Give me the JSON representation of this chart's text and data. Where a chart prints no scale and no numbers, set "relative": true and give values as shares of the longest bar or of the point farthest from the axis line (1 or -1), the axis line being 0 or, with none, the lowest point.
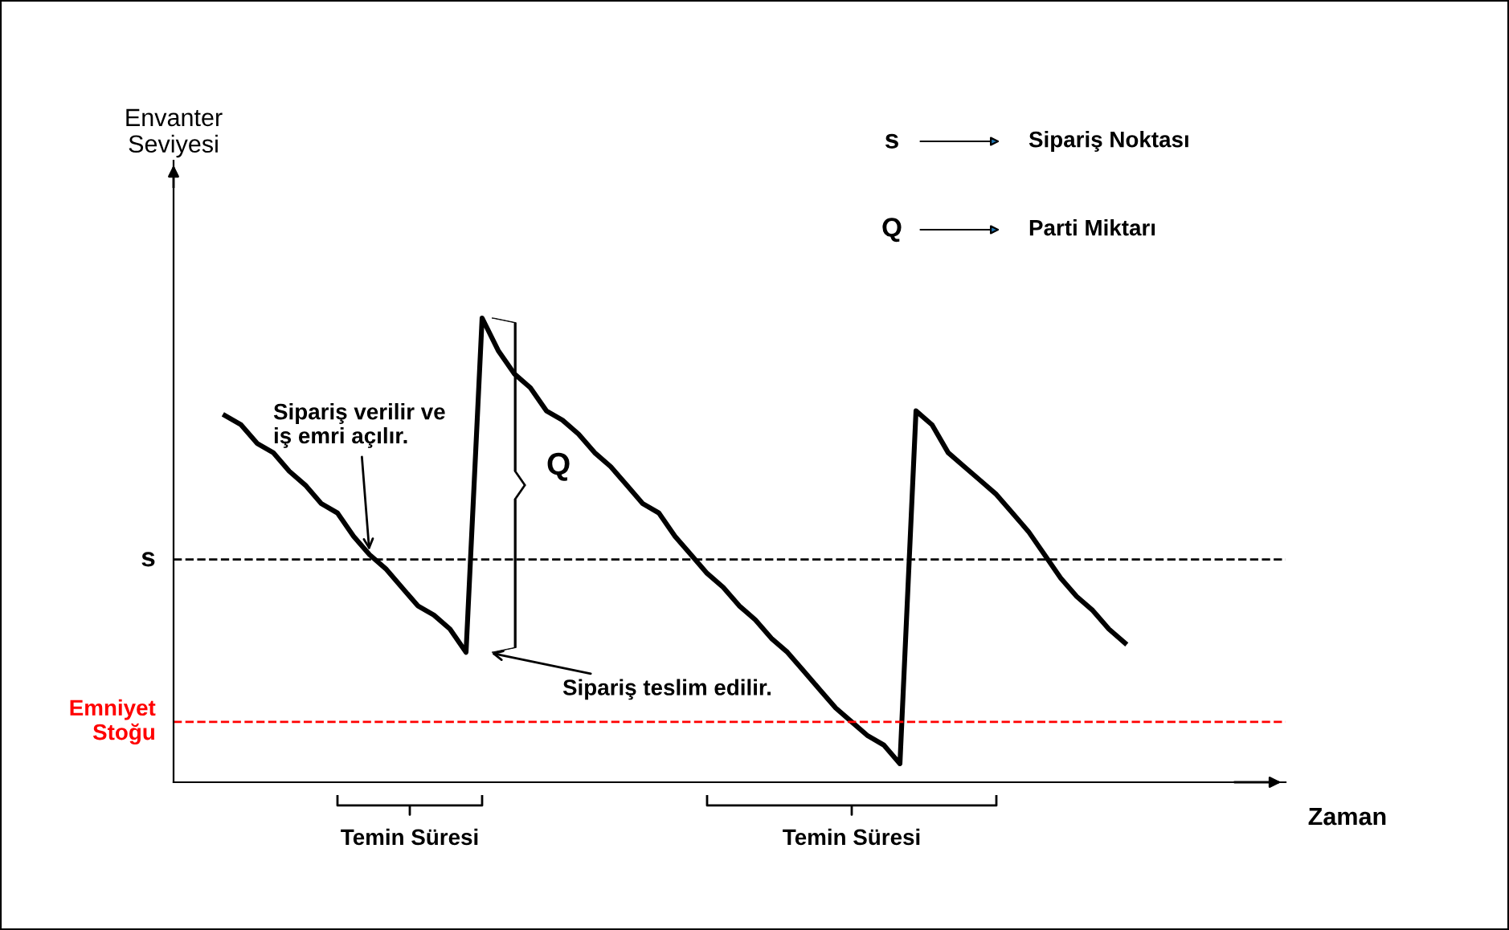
{
  "chart_data": {
    "type": "line",
    "relative": true,
    "xlabel": "Zaman",
    "marker": "none",
    "line_style": "solid",
    "categories": [
      null,
      null,
      null,
      null,
      null,
      null,
      null,
      null,
      null,
      null,
      null,
      null,
      null,
      null,
      null,
      null,
      null,
      null,
      null,
      null,
      null,
      null,
      null,
      null,
      null,
      null,
      null,
      null,
      null,
      null,
      null,
      null,
      null,
      null,
      null,
      null,
      null,
      null,
      null,
      null,
      null,
      null,
      null,
      null,
      null,
      null,
      null,
      null,
      null,
      null,
      null,
      null,
      null,
      null,
      null,
      null,
      null,
      null,
      null,
      null,
      null,
      null,
      null,
      null,
      null,
      null,
      null,
      null,
      null,
      null
    ],
    "series": [
      {
        "color": "#000000",
        "values": [
          null,
          null,
          null,
          0.79,
          0.77,
          0.73,
          0.71,
          0.67,
          0.64,
          0.6,
          0.58,
          0.53,
          0.49,
          0.46,
          0.42,
          0.38,
          0.36,
          0.33,
          0.28,
          1.0,
          0.93,
          0.88,
          0.85,
          0.8,
          0.78,
          0.75,
          0.71,
          0.68,
          0.64,
          0.6,
          0.58,
          0.53,
          0.49,
          0.45,
          0.42,
          0.38,
          0.35,
          0.31,
          0.28,
          0.24,
          0.2,
          0.16,
          0.13,
          0.1,
          0.08,
          0.04,
          0.8,
          0.77,
          0.71,
          0.68,
          0.65,
          0.62,
          0.58,
          0.54,
          0.49,
          0.44,
          0.4,
          0.37,
          0.33,
          0.3,
          null,
          null,
          null,
          null,
          null,
          null,
          null,
          null,
          null,
          null
        ]
      }
    ],
    "ref_lines": [
      {
        "axis": "y",
        "value": 0.48,
        "label": "s",
        "color": "#000000",
        "line_style": "dashed"
      },
      {
        "axis": "y",
        "value": 0.13,
        "label": "Emniyet\nStoğu",
        "color": "#ff0000",
        "line_style": "dashed"
      }
    ],
    "annotations": [
      "Sipariş verilir ve\niş emri açılır.",
      "Q",
      "Sipariş teslim edilir.",
      "Temin Süresi",
      "Temin Süresi",
      "s",
      "Sipariş Noktası",
      "Q",
      "Parti Miktarı",
      "Envanter\nSeviyesi"
    ]
  }
}
